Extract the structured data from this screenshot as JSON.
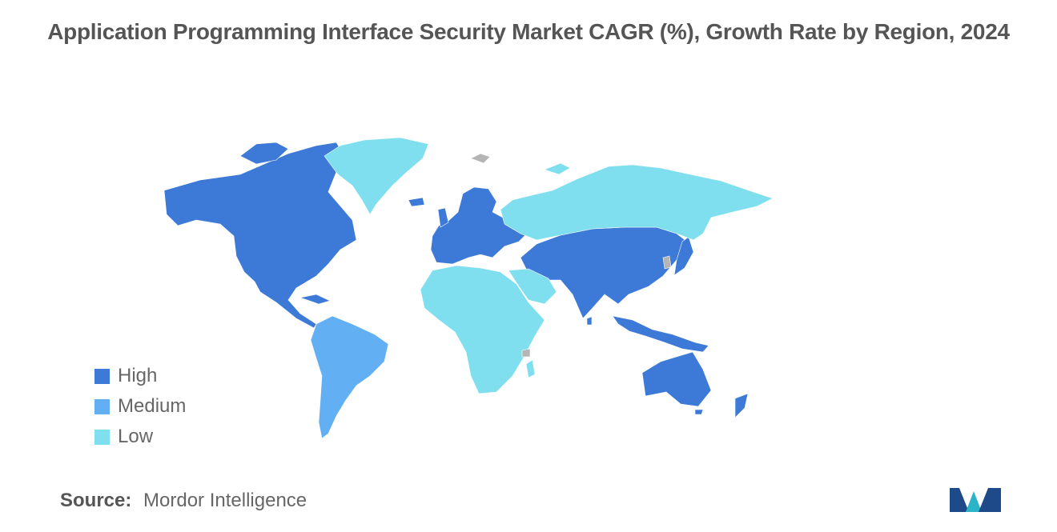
{
  "title": "Application Programming Interface Security Market CAGR (%), Growth Rate by Region, 2024",
  "legend": [
    {
      "label": "High",
      "color": "#3d7ad8"
    },
    {
      "label": "Medium",
      "color": "#62b0f3"
    },
    {
      "label": "Low",
      "color": "#7fdfee"
    }
  ],
  "no_data_color": "#b5b5b5",
  "source": {
    "key": "Source:",
    "value": "Mordor Intelligence"
  },
  "logo": {
    "icon": "mordor-intelligence-logo",
    "colors": [
      "#1f4a8a",
      "#2bb3c8"
    ]
  }
}
